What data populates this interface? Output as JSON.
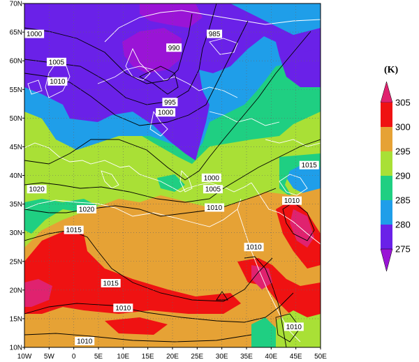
{
  "map": {
    "lon_range": [
      -10,
      50
    ],
    "lat_range": [
      10,
      70
    ],
    "lon_ticks": [
      {
        "value": -10,
        "label": "10W"
      },
      {
        "value": -5,
        "label": "5W"
      },
      {
        "value": 0,
        "label": "0"
      },
      {
        "value": 5,
        "label": "5E"
      },
      {
        "value": 10,
        "label": "10E"
      },
      {
        "value": 15,
        "label": "15E"
      },
      {
        "value": 20,
        "label": "20E"
      },
      {
        "value": 25,
        "label": "25E"
      },
      {
        "value": 30,
        "label": "30E"
      },
      {
        "value": 35,
        "label": "35E"
      },
      {
        "value": 40,
        "label": "40E"
      },
      {
        "value": 45,
        "label": "45E"
      },
      {
        "value": 50,
        "label": "50E"
      }
    ],
    "lat_ticks": [
      {
        "value": 10,
        "label": "10N"
      },
      {
        "value": 15,
        "label": "15N"
      },
      {
        "value": 20,
        "label": "20N"
      },
      {
        "value": 25,
        "label": "25N"
      },
      {
        "value": 30,
        "label": "30N"
      },
      {
        "value": 35,
        "label": "35N"
      },
      {
        "value": 40,
        "label": "40N"
      },
      {
        "value": 45,
        "label": "45N"
      },
      {
        "value": 50,
        "label": "50N"
      },
      {
        "value": 55,
        "label": "55N"
      },
      {
        "value": 60,
        "label": "60N"
      },
      {
        "value": 65,
        "label": "65N"
      },
      {
        "value": 70,
        "label": "70N"
      }
    ],
    "contour_labels": [
      {
        "text": "1000",
        "lon": -8,
        "lat": 64.7
      },
      {
        "text": "985",
        "lon": 28.5,
        "lat": 64.7
      },
      {
        "text": "990",
        "lon": 20.3,
        "lat": 62.3
      },
      {
        "text": "1005",
        "lon": -3.5,
        "lat": 59.8
      },
      {
        "text": "1010",
        "lon": -3.3,
        "lat": 56.4
      },
      {
        "text": "995",
        "lon": 19.5,
        "lat": 52.8
      },
      {
        "text": "1000",
        "lon": 18.6,
        "lat": 51
      },
      {
        "text": "1000",
        "lon": 27.9,
        "lat": 39.6
      },
      {
        "text": "1005",
        "lon": 28.2,
        "lat": 37.6
      },
      {
        "text": "1010",
        "lon": 28.5,
        "lat": 34.4
      },
      {
        "text": "1015",
        "lon": 47.7,
        "lat": 41.8
      },
      {
        "text": "1010",
        "lon": 44.2,
        "lat": 35.6
      },
      {
        "text": "1020",
        "lon": -7.5,
        "lat": 37.6
      },
      {
        "text": "1020",
        "lon": 2.6,
        "lat": 34.1
      },
      {
        "text": "1015",
        "lon": 0,
        "lat": 30.5
      },
      {
        "text": "1010",
        "lon": 36.5,
        "lat": 27.5
      },
      {
        "text": "1015",
        "lon": 7.5,
        "lat": 21.2
      },
      {
        "text": "1010",
        "lon": 10,
        "lat": 16.9
      },
      {
        "text": "1010",
        "lon": 2.2,
        "lat": 11.1
      },
      {
        "text": "1010",
        "lon": 44.6,
        "lat": 13.6
      }
    ]
  },
  "colorbar": {
    "unit": "(K)",
    "levels": [
      "305",
      "300",
      "295",
      "290",
      "285",
      "280",
      "275"
    ],
    "colors": {
      "above": "#e0226f",
      "bands": [
        "#ef1212",
        "#e6a235",
        "#a9e036",
        "#1fcf82",
        "#1f9ee9",
        "#6a21e8"
      ],
      "below": "#9a14d6"
    }
  },
  "field_colors": {
    "c275": "#9a14d6",
    "c280": "#6a21e8",
    "c285": "#1f9ee9",
    "c290": "#1fcf82",
    "c295": "#a9e036",
    "c300": "#e6a235",
    "c305": "#ef1212",
    "c310": "#e0226f"
  }
}
